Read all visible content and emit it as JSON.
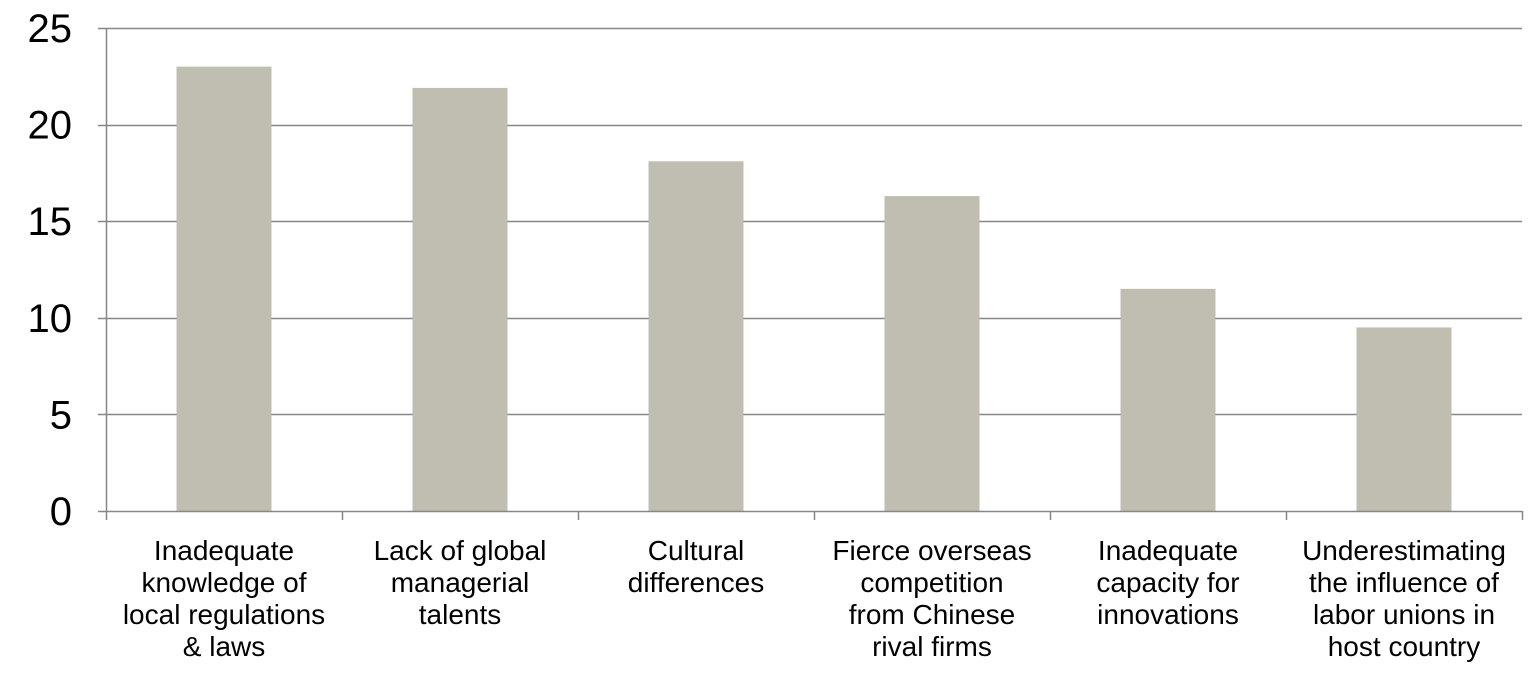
{
  "chart_data": {
    "type": "bar",
    "title": "",
    "xlabel": "",
    "ylabel": "",
    "ylim": [
      0,
      25
    ],
    "yticks": [
      0,
      5,
      10,
      15,
      20,
      25
    ],
    "grid": true,
    "legend": "none",
    "bar_color": "#C0BEB0",
    "grid_color": "#878787",
    "categories": [
      [
        "Inadequate",
        "knowledge of",
        "local regulations",
        "& laws"
      ],
      [
        "Lack of global",
        "managerial",
        "talents"
      ],
      [
        "Cultural",
        "differences"
      ],
      [
        "Fierce overseas",
        "competition",
        "from Chinese",
        "rival firms"
      ],
      [
        "Inadequate",
        "capacity for",
        "innovations"
      ],
      [
        "Underestimating",
        "the influence of",
        "labor unions in",
        "host country"
      ]
    ],
    "values": [
      23,
      21.9,
      18.1,
      16.3,
      11.5,
      9.5
    ]
  }
}
